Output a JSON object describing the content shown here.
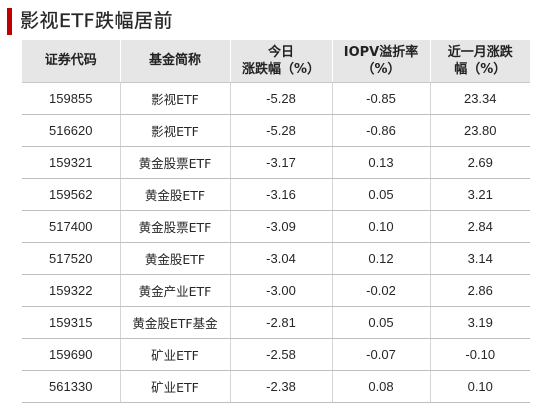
{
  "title": "影视ETF跌幅居前",
  "colors": {
    "accent": "#c00000",
    "header_bg": "#e6e6e6"
  },
  "table": {
    "headers": [
      {
        "line1": "证券代码",
        "line2": ""
      },
      {
        "line1": "基金简称",
        "line2": ""
      },
      {
        "line1": "今日",
        "line2": "涨跌幅（%）"
      },
      {
        "line1": "IOPV溢折率",
        "line2": "（%）"
      },
      {
        "line1": "近一月涨跌",
        "line2": "幅（%）"
      }
    ],
    "rows": [
      {
        "code": "159855",
        "name": "影视ETF",
        "change": "-5.28",
        "iopv": "-0.85",
        "month": "23.34"
      },
      {
        "code": "516620",
        "name": "影视ETF",
        "change": "-5.28",
        "iopv": "-0.86",
        "month": "23.80"
      },
      {
        "code": "159321",
        "name": "黄金股票ETF",
        "change": "-3.17",
        "iopv": "0.13",
        "month": "2.69"
      },
      {
        "code": "159562",
        "name": "黄金股ETF",
        "change": "-3.16",
        "iopv": "0.05",
        "month": "3.21"
      },
      {
        "code": "517400",
        "name": "黄金股票ETF",
        "change": "-3.09",
        "iopv": "0.10",
        "month": "2.84"
      },
      {
        "code": "517520",
        "name": "黄金股ETF",
        "change": "-3.04",
        "iopv": "0.12",
        "month": "3.14"
      },
      {
        "code": "159322",
        "name": "黄金产业ETF",
        "change": "-3.00",
        "iopv": "-0.02",
        "month": "2.86"
      },
      {
        "code": "159315",
        "name": "黄金股ETF基金",
        "change": "-2.81",
        "iopv": "0.05",
        "month": "3.19"
      },
      {
        "code": "159690",
        "name": "矿业ETF",
        "change": "-2.58",
        "iopv": "-0.07",
        "month": "-0.10"
      },
      {
        "code": "561330",
        "name": "矿业ETF",
        "change": "-2.38",
        "iopv": "0.08",
        "month": "0.10"
      }
    ]
  }
}
